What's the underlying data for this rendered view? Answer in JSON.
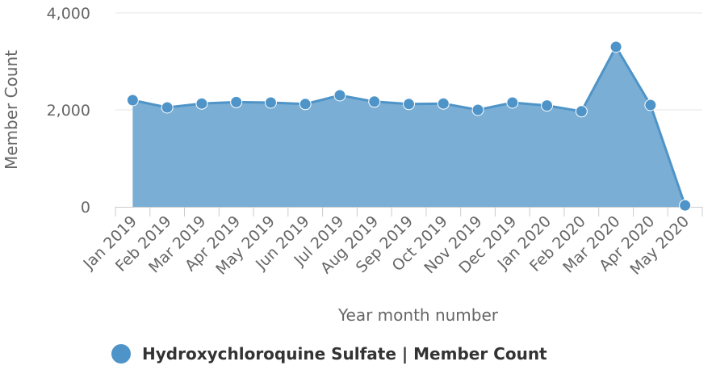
{
  "colors": {
    "series": "#4f94c8",
    "area": "#7aaed4",
    "grid": "#e6e6e6",
    "axis": "#cccccc",
    "text": "#666666"
  },
  "chart_data": {
    "type": "area",
    "x": [
      "Jan 2019",
      "Feb 2019",
      "Mar 2019",
      "Apr 2019",
      "May 2019",
      "Jun 2019",
      "Jul 2019",
      "Aug 2019",
      "Sep 2019",
      "Oct 2019",
      "Nov 2019",
      "Dec 2019",
      "Jan 2020",
      "Feb 2020",
      "Mar 2020",
      "Apr 2020",
      "May 2020"
    ],
    "series": [
      {
        "name": "Hydroxychloroquine Sulfate | Member Count",
        "values": [
          2200,
          2050,
          2130,
          2160,
          2150,
          2120,
          2300,
          2170,
          2120,
          2130,
          2000,
          2150,
          2090,
          1970,
          3300,
          2100,
          30
        ]
      }
    ],
    "xlabel": "Year month number",
    "ylabel": "Member Count",
    "ylim": [
      0,
      4000
    ],
    "yticks": [
      "0",
      "2,000",
      "4,000"
    ],
    "grid": true,
    "legend_position": "bottom"
  },
  "legend": {
    "label": "Hydroxychloroquine Sulfate | Member Count"
  }
}
